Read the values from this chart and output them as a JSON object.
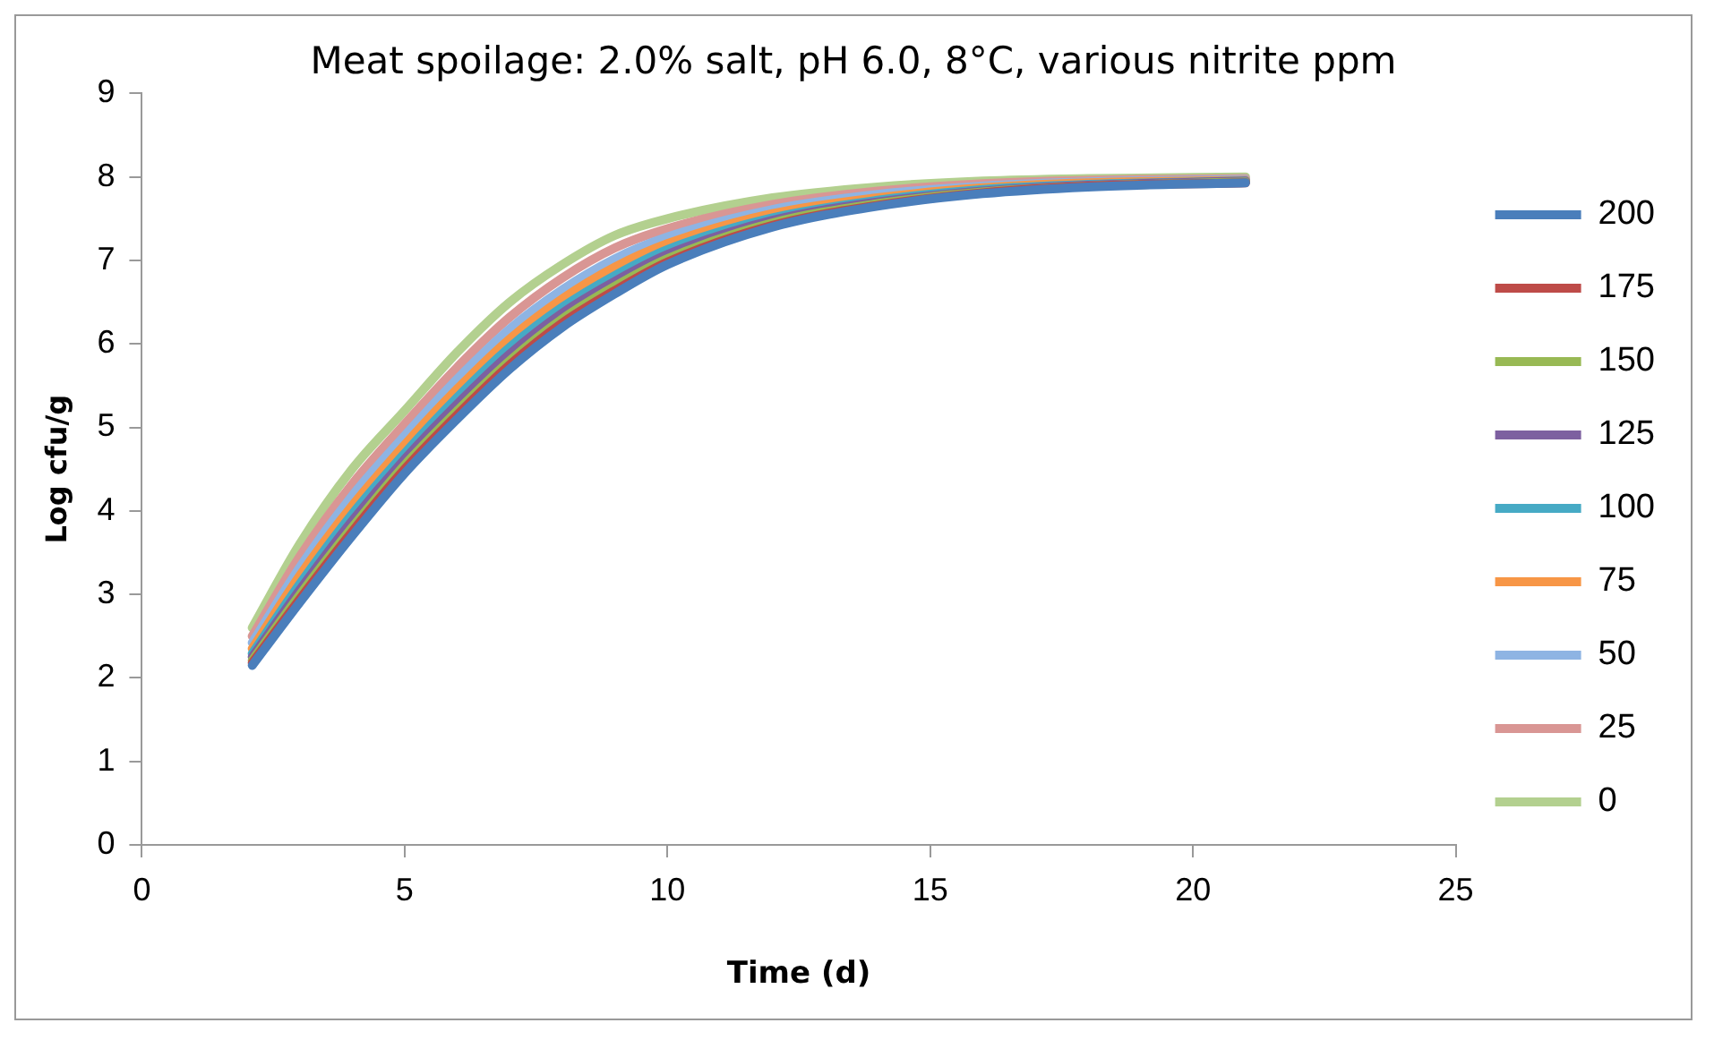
{
  "chart_data": {
    "type": "line",
    "title": "Meat spoilage: 2.0% salt, pH 6.0, 8°C, various nitrite ppm",
    "xlabel": "Time (d)",
    "ylabel": "Log cfu/g",
    "x": [
      2.1,
      3,
      4,
      5,
      6,
      7,
      8,
      9,
      10,
      12,
      14,
      16,
      18,
      21
    ],
    "series": [
      {
        "name": "200",
        "color": "#4a7ebb",
        "values": [
          2.15,
          2.9,
          3.7,
          4.45,
          5.1,
          5.7,
          6.2,
          6.6,
          6.95,
          7.4,
          7.65,
          7.8,
          7.88,
          7.93
        ]
      },
      {
        "name": "175",
        "color": "#be4b48",
        "values": [
          2.18,
          2.94,
          3.75,
          4.5,
          5.15,
          5.75,
          6.25,
          6.64,
          6.98,
          7.42,
          7.66,
          7.81,
          7.89,
          7.93
        ]
      },
      {
        "name": "150",
        "color": "#98b954",
        "values": [
          2.21,
          2.99,
          3.8,
          4.55,
          5.2,
          5.8,
          6.3,
          6.69,
          7.02,
          7.45,
          7.68,
          7.82,
          7.89,
          7.94
        ]
      },
      {
        "name": "125",
        "color": "#7d60a0",
        "values": [
          2.25,
          3.05,
          3.88,
          4.62,
          5.28,
          5.88,
          6.37,
          6.75,
          7.07,
          7.48,
          7.7,
          7.83,
          7.9,
          7.95
        ]
      },
      {
        "name": "100",
        "color": "#46aac5",
        "values": [
          2.29,
          3.12,
          3.96,
          4.69,
          5.36,
          5.96,
          6.44,
          6.82,
          7.13,
          7.51,
          7.72,
          7.85,
          7.91,
          7.95
        ]
      },
      {
        "name": "75",
        "color": "#f79646",
        "values": [
          2.35,
          3.22,
          4.06,
          4.79,
          5.46,
          6.06,
          6.54,
          6.92,
          7.2,
          7.56,
          7.75,
          7.87,
          7.93,
          7.96
        ]
      },
      {
        "name": "50",
        "color": "#8eb4e3",
        "values": [
          2.42,
          3.32,
          4.18,
          4.9,
          5.58,
          6.18,
          6.65,
          7.02,
          7.28,
          7.61,
          7.79,
          7.89,
          7.94,
          7.97
        ]
      },
      {
        "name": "25",
        "color": "#d99694",
        "values": [
          2.5,
          3.45,
          4.32,
          5.04,
          5.72,
          6.32,
          6.79,
          7.15,
          7.38,
          7.67,
          7.83,
          7.92,
          7.96,
          7.98
        ]
      },
      {
        "name": "0",
        "color": "#b3d08f",
        "values": [
          2.6,
          3.6,
          4.5,
          5.2,
          5.9,
          6.5,
          6.95,
          7.3,
          7.5,
          7.75,
          7.88,
          7.95,
          7.98,
          8.0
        ]
      }
    ],
    "xlim": [
      0,
      25
    ],
    "xticks": [
      0,
      5,
      10,
      15,
      20,
      25
    ],
    "ylim": [
      0,
      9
    ],
    "yticks": [
      0,
      1,
      2,
      3,
      4,
      5,
      6,
      7,
      8,
      9
    ],
    "grid": false,
    "legend": "right",
    "marker": "none",
    "line_style": "solid"
  }
}
